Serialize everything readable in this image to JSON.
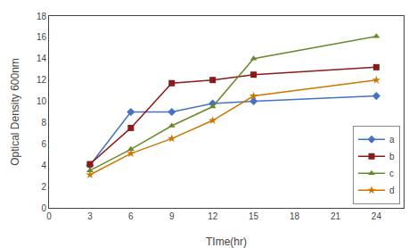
{
  "chart_data": {
    "type": "line",
    "xlabel": "TIme(hr)",
    "ylabel": "Optical Density 600nm",
    "x": [
      3,
      6,
      9,
      12,
      15,
      24
    ],
    "series": [
      {
        "name": "a",
        "color": "#4472c4",
        "marker": "diamond",
        "values": [
          4.0,
          9.0,
          9.0,
          9.8,
          10.0,
          10.5
        ]
      },
      {
        "name": "b",
        "color": "#8b1a1a",
        "marker": "square",
        "values": [
          4.1,
          7.5,
          11.7,
          12.0,
          12.5,
          13.2
        ]
      },
      {
        "name": "c",
        "color": "#6a8a2a",
        "marker": "triangle-up",
        "values": [
          3.5,
          5.5,
          7.7,
          9.5,
          14.0,
          16.1
        ]
      },
      {
        "name": "d",
        "color": "#cc7700",
        "marker": "star",
        "values": [
          3.1,
          5.1,
          6.5,
          8.2,
          10.5,
          12.0
        ]
      }
    ],
    "xlim": [
      0,
      26
    ],
    "ylim": [
      0,
      18
    ],
    "xticks": [
      0,
      3,
      6,
      9,
      12,
      15,
      18,
      21,
      24
    ],
    "yticks": [
      0,
      2,
      4,
      6,
      8,
      10,
      12,
      14,
      16,
      18
    ],
    "grid": false,
    "legend": "lower right"
  }
}
